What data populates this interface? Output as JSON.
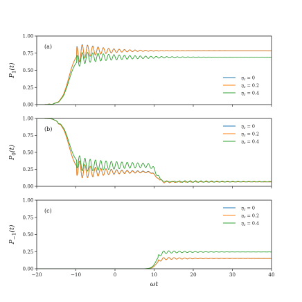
{
  "chart_data": [
    {
      "type": "line",
      "panel_label": "(a)",
      "ylabel": "P_1(t)",
      "xlabel": "",
      "xlim": [
        -20,
        40
      ],
      "ylim": [
        0,
        1
      ],
      "yticks": [
        0.0,
        0.25,
        0.5,
        0.75,
        1.0
      ],
      "ytick_labels": [
        "0.00",
        "0.25",
        "0.50",
        "0.75",
        "1.00"
      ],
      "xticks": [
        -20,
        -10,
        0,
        10,
        20,
        30,
        40
      ],
      "xtick_labels": [
        "",
        "",
        "",
        "",
        "",
        "",
        ""
      ],
      "legend_position": "center-right",
      "series": [
        {
          "name": "η_z = 0",
          "color": "#1f77b4",
          "final": 0.785,
          "peak": [
            -8.5,
            0.93
          ],
          "osc_amp": 0.14
        },
        {
          "name": "η_z = 0.2",
          "color": "#ff7f0e",
          "final": 0.785,
          "peak": [
            -8.5,
            0.91
          ],
          "osc_amp": 0.13
        },
        {
          "name": "η_z = 0.4",
          "color": "#2ca02c",
          "final": 0.69,
          "peak": [
            -8.5,
            0.79
          ],
          "osc_amp": 0.1
        }
      ]
    },
    {
      "type": "line",
      "panel_label": "(b)",
      "ylabel": "P_0(t)",
      "xlabel": "",
      "xlim": [
        -20,
        40
      ],
      "ylim": [
        0,
        1
      ],
      "yticks": [
        0.0,
        0.25,
        0.5,
        0.75,
        1.0
      ],
      "ytick_labels": [
        "0.00",
        "0.25",
        "0.50",
        "0.75",
        "1.00"
      ],
      "xticks": [
        -20,
        -10,
        0,
        10,
        20,
        30,
        40
      ],
      "xtick_labels": [
        "",
        "",
        "",
        "",
        "",
        "",
        ""
      ],
      "legend_position": "upper-right",
      "series": [
        {
          "name": "η_z = 0",
          "color": "#1f77b4",
          "plateau": 0.215,
          "final": 0.065
        },
        {
          "name": "η_z = 0.2",
          "color": "#ff7f0e",
          "plateau": 0.21,
          "final": 0.065
        },
        {
          "name": "η_z = 0.4",
          "color": "#2ca02c",
          "plateau": 0.31,
          "final": 0.07
        }
      ]
    },
    {
      "type": "line",
      "panel_label": "(c)",
      "ylabel": "P_{-1}(t)",
      "xlabel": "ωt",
      "xlim": [
        -20,
        40
      ],
      "ylim": [
        0,
        1
      ],
      "yticks": [
        0.0,
        0.25,
        0.5,
        0.75,
        1.0
      ],
      "ytick_labels": [
        "0.00",
        "0.25",
        "0.50",
        "0.75",
        "1.00"
      ],
      "xticks": [
        -20,
        -10,
        0,
        10,
        20,
        30,
        40
      ],
      "xtick_labels": [
        "−20",
        "−10",
        "0",
        "10",
        "20",
        "30",
        "40"
      ],
      "legend_position": "upper-right",
      "series": [
        {
          "name": "η_z = 0",
          "color": "#1f77b4",
          "final": 0.15,
          "rise_at": 11.5
        },
        {
          "name": "η_z = 0.2",
          "color": "#ff7f0e",
          "final": 0.15,
          "rise_at": 11.5
        },
        {
          "name": "η_z = 0.4",
          "color": "#2ca02c",
          "final": 0.245,
          "rise_at": 11.5
        }
      ]
    }
  ]
}
